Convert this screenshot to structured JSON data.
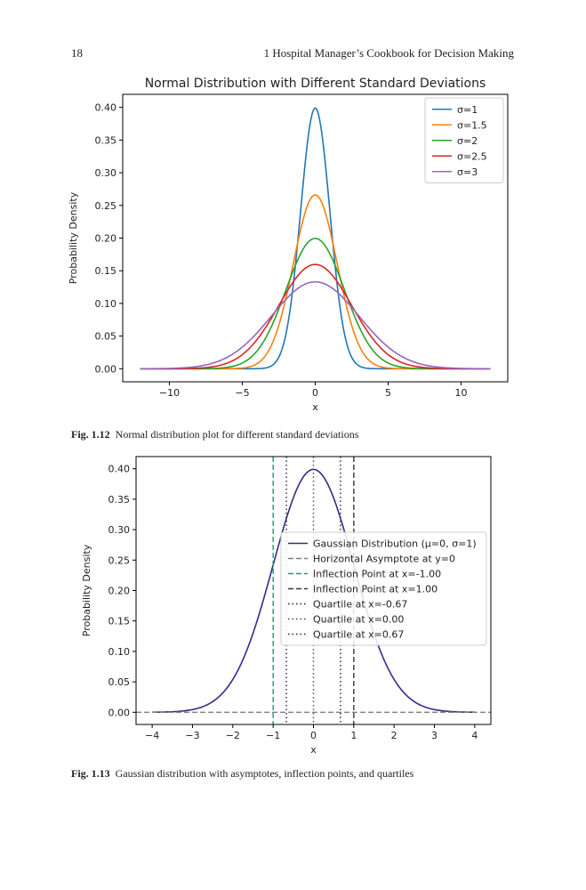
{
  "header": {
    "page_number": "18",
    "running_title": "1   Hospital Manager’s Cookbook for Decision Making"
  },
  "figures": [
    {
      "label": "Fig. 1.12",
      "caption": "Normal distribution plot for different standard deviations"
    },
    {
      "label": "Fig. 1.13",
      "caption": "Gaussian distribution with asymptotes, inflection points, and quartiles"
    }
  ],
  "chart_data": [
    {
      "type": "line",
      "title": "Normal Distribution with Different Standard Deviations",
      "xlabel": "x",
      "ylabel": "Probability Density",
      "xlim": [
        -13.2,
        13.2
      ],
      "ylim": [
        -0.02,
        0.42
      ],
      "x_range": [
        -12,
        12
      ],
      "xticks": [
        -10,
        -5,
        0,
        5,
        10
      ],
      "xtick_labels": [
        "−10",
        "−5",
        "0",
        "5",
        "10"
      ],
      "yticks": [
        0.0,
        0.05,
        0.1,
        0.15,
        0.2,
        0.25,
        0.3,
        0.35,
        0.4
      ],
      "ytick_labels": [
        "0.00",
        "0.05",
        "0.10",
        "0.15",
        "0.20",
        "0.25",
        "0.30",
        "0.35",
        "0.40"
      ],
      "grid": false,
      "legend": "top-right",
      "series": [
        {
          "name": "σ=1",
          "mean": 0,
          "sigma": 1,
          "color": "#1f77b4"
        },
        {
          "name": "σ=1.5",
          "mean": 0,
          "sigma": 1.5,
          "color": "#ff7f0e"
        },
        {
          "name": "σ=2",
          "mean": 0,
          "sigma": 2,
          "color": "#2ca02c"
        },
        {
          "name": "σ=2.5",
          "mean": 0,
          "sigma": 2.5,
          "color": "#d62728"
        },
        {
          "name": "σ=3",
          "mean": 0,
          "sigma": 3,
          "color": "#9467bd"
        }
      ]
    },
    {
      "type": "line",
      "title": "",
      "xlabel": "x",
      "ylabel": "Probability Density",
      "xlim": [
        -4.4,
        4.4
      ],
      "ylim": [
        -0.02,
        0.42
      ],
      "x_range": [
        -4,
        4
      ],
      "xticks": [
        -4,
        -3,
        -2,
        -1,
        0,
        1,
        2,
        3,
        4
      ],
      "xtick_labels": [
        "−4",
        "−3",
        "−2",
        "−1",
        "0",
        "1",
        "2",
        "3",
        "4"
      ],
      "yticks": [
        0.0,
        0.05,
        0.1,
        0.15,
        0.2,
        0.25,
        0.3,
        0.35,
        0.4
      ],
      "ytick_labels": [
        "0.00",
        "0.05",
        "0.10",
        "0.15",
        "0.20",
        "0.25",
        "0.30",
        "0.35",
        "0.40"
      ],
      "grid": false,
      "legend": "center-right",
      "series": [
        {
          "name": "Gaussian Distribution (μ=0, σ=1)",
          "mean": 0,
          "sigma": 1,
          "color": "#2e2e8c"
        }
      ],
      "hlines": [
        {
          "name": "Horizontal Asymptote at y=0",
          "y": 0,
          "color": "#808080",
          "dash": "dashed"
        }
      ],
      "vlines": [
        {
          "name": "Inflection Point at x=-1.00",
          "x": -1.0,
          "color": "#1a9e7a",
          "dash": "dashed"
        },
        {
          "name": "Inflection Point at x=1.00",
          "x": 1.0,
          "color": "#333344",
          "dash": "dashed"
        },
        {
          "name": "Quartile at x=-0.67",
          "x": -0.67,
          "color": "#222233",
          "dash": "dotted"
        },
        {
          "name": "Quartile at x=0.00",
          "x": 0.0,
          "color": "#444455",
          "dash": "dotted"
        },
        {
          "name": "Quartile at x=0.67",
          "x": 0.67,
          "color": "#222233",
          "dash": "dotted"
        }
      ]
    }
  ]
}
